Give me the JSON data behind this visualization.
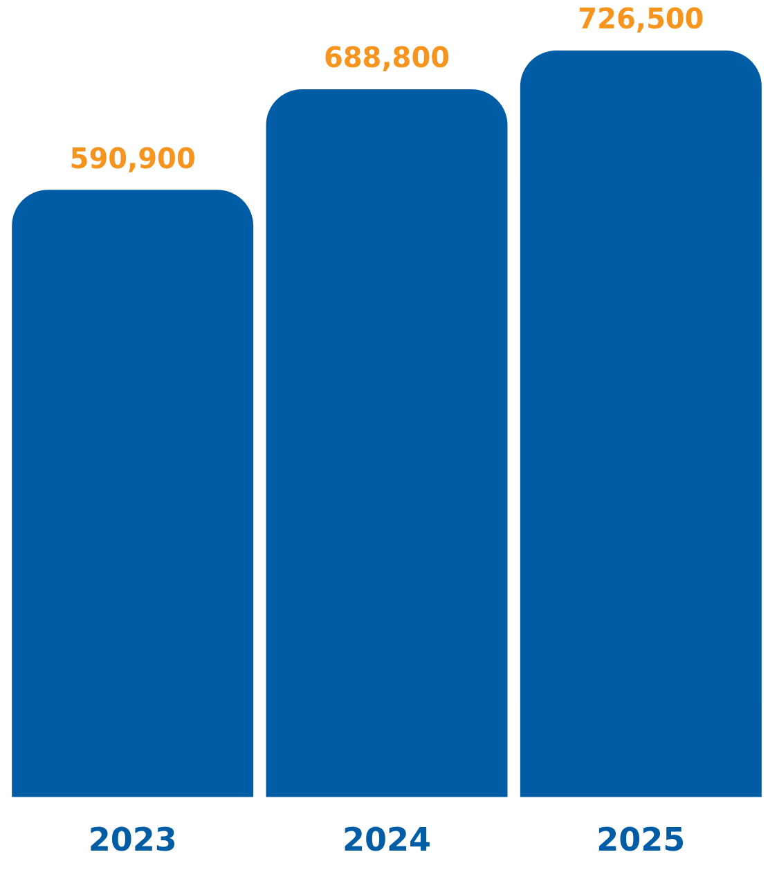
{
  "chart_data": {
    "type": "bar",
    "categories": [
      "2023",
      "2024",
      "2025"
    ],
    "values": [
      590900,
      688800,
      726500
    ],
    "color": "#005da5",
    "value_labels": [
      "590,900",
      "688,800",
      "726,500"
    ],
    "grid": false,
    "legend": false,
    "tick_labels": "x"
  }
}
